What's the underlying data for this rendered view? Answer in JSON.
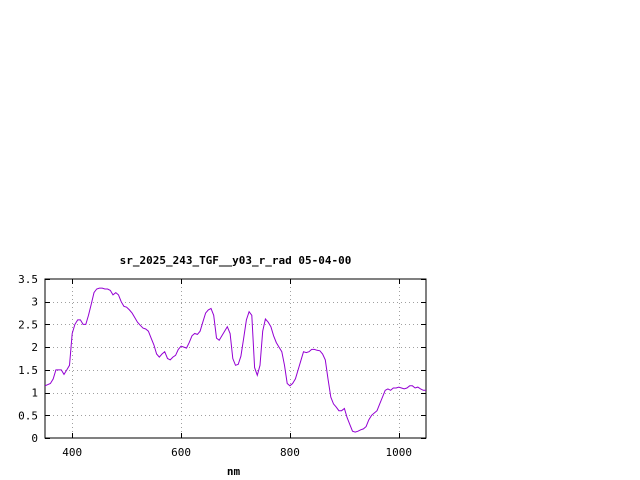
{
  "chart_data": {
    "type": "line",
    "title": "sr_2025_243_TGF__y03_r_rad 05-04-00",
    "xlabel": "nm",
    "ylabel": "",
    "xlim": [
      350,
      1050
    ],
    "ylim": [
      0,
      3.5
    ],
    "x_ticks": [
      400,
      600,
      800,
      1000
    ],
    "x_tick_labels": [
      "400",
      "600",
      "800",
      "1000"
    ],
    "y_ticks": [
      0,
      0.5,
      1,
      1.5,
      2,
      2.5,
      3,
      3.5
    ],
    "y_tick_labels": [
      "0",
      "0.5",
      "1",
      "1.5",
      "2",
      "2.5",
      "3",
      "3.5"
    ],
    "grid": true,
    "line_color": "#9400d3",
    "series": [
      {
        "x": [
          350,
          360,
          365,
          370,
          380,
          385,
          390,
          395,
          400,
          405,
          410,
          415,
          420,
          425,
          430,
          435,
          440,
          445,
          450,
          455,
          460,
          465,
          470,
          475,
          480,
          485,
          490,
          495,
          500,
          505,
          510,
          515,
          520,
          525,
          530,
          535,
          540,
          545,
          550,
          555,
          560,
          565,
          570,
          575,
          580,
          585,
          590,
          595,
          600,
          605,
          610,
          615,
          620,
          625,
          630,
          635,
          640,
          645,
          650,
          655,
          660,
          665,
          670,
          675,
          680,
          685,
          690,
          695,
          700,
          705,
          710,
          715,
          720,
          725,
          730,
          735,
          740,
          745,
          750,
          755,
          760,
          765,
          770,
          775,
          780,
          785,
          790,
          795,
          800,
          805,
          810,
          815,
          820,
          825,
          830,
          835,
          840,
          845,
          850,
          855,
          860,
          865,
          870,
          875,
          880,
          885,
          890,
          895,
          900,
          905,
          910,
          915,
          920,
          925,
          930,
          935,
          940,
          945,
          950,
          955,
          960,
          965,
          970,
          975,
          980,
          985,
          990,
          995,
          1000,
          1005,
          1010,
          1015,
          1020,
          1025,
          1030,
          1035,
          1040,
          1045,
          1050
        ],
        "y": [
          1.15,
          1.2,
          1.3,
          1.5,
          1.5,
          1.4,
          1.5,
          1.6,
          2.3,
          2.5,
          2.6,
          2.6,
          2.5,
          2.5,
          2.7,
          2.95,
          3.2,
          3.28,
          3.3,
          3.3,
          3.28,
          3.28,
          3.25,
          3.15,
          3.2,
          3.15,
          3.0,
          2.9,
          2.88,
          2.82,
          2.75,
          2.65,
          2.55,
          2.48,
          2.42,
          2.4,
          2.35,
          2.2,
          2.05,
          1.85,
          1.78,
          1.85,
          1.9,
          1.75,
          1.72,
          1.78,
          1.82,
          1.95,
          2.02,
          2.0,
          1.98,
          2.1,
          2.25,
          2.3,
          2.28,
          2.35,
          2.55,
          2.75,
          2.82,
          2.85,
          2.7,
          2.2,
          2.15,
          2.25,
          2.35,
          2.45,
          2.3,
          1.75,
          1.6,
          1.62,
          1.8,
          2.2,
          2.6,
          2.78,
          2.7,
          1.55,
          1.38,
          1.6,
          2.35,
          2.62,
          2.55,
          2.45,
          2.25,
          2.1,
          2.0,
          1.9,
          1.6,
          1.2,
          1.15,
          1.2,
          1.3,
          1.5,
          1.7,
          1.9,
          1.88,
          1.9,
          1.95,
          1.95,
          1.93,
          1.92,
          1.85,
          1.72,
          1.3,
          0.9,
          0.75,
          0.68,
          0.6,
          0.6,
          0.65,
          0.45,
          0.3,
          0.15,
          0.13,
          0.15,
          0.18,
          0.2,
          0.25,
          0.4,
          0.5,
          0.55,
          0.6,
          0.75,
          0.9,
          1.05,
          1.08,
          1.05,
          1.1,
          1.1,
          1.12,
          1.1,
          1.08,
          1.1,
          1.15,
          1.15,
          1.1,
          1.12,
          1.08,
          1.05,
          1.05
        ]
      }
    ]
  }
}
